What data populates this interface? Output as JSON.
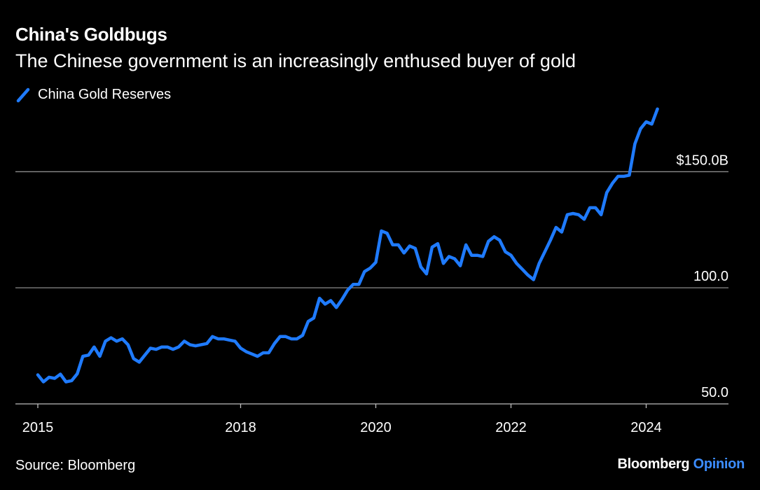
{
  "header": {
    "title": "China's Goldbugs",
    "subtitle": "The Chinese government is an increasingly enthused buyer of gold"
  },
  "legend": {
    "label": "China Gold Reserves",
    "color": "#1f7bff",
    "icon": "diagonal-line-icon"
  },
  "footer": {
    "source": "Source: Bloomberg",
    "brand_main": "Bloomberg",
    "brand_accent": "Opinion",
    "brand_accent_color": "#3c8dff"
  },
  "chart_data": {
    "type": "line",
    "title": "China's Goldbugs",
    "subtitle": "The Chinese government is an increasingly enthused buyer of gold",
    "xlabel": "",
    "ylabel": "",
    "xlim": [
      "2015-01",
      "2025-08"
    ],
    "ylim": [
      50,
      150
    ],
    "y_ticks": [
      {
        "value": 50,
        "label": "50.0"
      },
      {
        "value": 100,
        "label": "100.0"
      },
      {
        "value": 150,
        "label": "$150.0B"
      }
    ],
    "x_ticks": [
      {
        "value": "2015-01",
        "label": "2015"
      },
      {
        "value": "2018-01",
        "label": "2018"
      },
      {
        "value": "2020-01",
        "label": "2020"
      },
      {
        "value": "2022-01",
        "label": "2022"
      },
      {
        "value": "2024-01",
        "label": "2024"
      }
    ],
    "grid": "horizontal",
    "legend_position": "top-left",
    "series": [
      {
        "name": "China Gold Reserves",
        "color": "#1f7bff",
        "points": [
          [
            "2015-01",
            62.5
          ],
          [
            "2015-02",
            59.5
          ],
          [
            "2015-03",
            61.5
          ],
          [
            "2015-04",
            61
          ],
          [
            "2015-05",
            62.8
          ],
          [
            "2015-06",
            59.5
          ],
          [
            "2015-07",
            60
          ],
          [
            "2015-08",
            63
          ],
          [
            "2015-09",
            70.5
          ],
          [
            "2015-10",
            71
          ],
          [
            "2015-11",
            74.5
          ],
          [
            "2015-12",
            70.5
          ],
          [
            "2016-01",
            77
          ],
          [
            "2016-02",
            78.5
          ],
          [
            "2016-03",
            77
          ],
          [
            "2016-04",
            78
          ],
          [
            "2016-05",
            75.5
          ],
          [
            "2016-06",
            69.5
          ],
          [
            "2016-07",
            68
          ],
          [
            "2016-08",
            71
          ],
          [
            "2016-09",
            74
          ],
          [
            "2016-10",
            73.5
          ],
          [
            "2016-11",
            74.5
          ],
          [
            "2016-12",
            74.5
          ],
          [
            "2017-01",
            73.5
          ],
          [
            "2017-02",
            74.5
          ],
          [
            "2017-03",
            77
          ],
          [
            "2017-04",
            75.5
          ],
          [
            "2017-05",
            75
          ],
          [
            "2017-06",
            75.5
          ],
          [
            "2017-07",
            76
          ],
          [
            "2017-08",
            79
          ],
          [
            "2017-09",
            78
          ],
          [
            "2017-10",
            78
          ],
          [
            "2017-11",
            77.5
          ],
          [
            "2017-12",
            77
          ],
          [
            "2018-01",
            74
          ],
          [
            "2018-02",
            72.5
          ],
          [
            "2018-03",
            71.5
          ],
          [
            "2018-04",
            70.5
          ],
          [
            "2018-05",
            72
          ],
          [
            "2018-06",
            72
          ],
          [
            "2018-07",
            76
          ],
          [
            "2018-08",
            79
          ],
          [
            "2018-09",
            79
          ],
          [
            "2018-10",
            78
          ],
          [
            "2018-11",
            78
          ],
          [
            "2018-12",
            79.5
          ],
          [
            "2019-01",
            85.5
          ],
          [
            "2019-02",
            87
          ],
          [
            "2019-03",
            95.5
          ],
          [
            "2019-04",
            93
          ],
          [
            "2019-05",
            94.5
          ],
          [
            "2019-06",
            91.5
          ],
          [
            "2019-07",
            95
          ],
          [
            "2019-08",
            99
          ],
          [
            "2019-09",
            101.5
          ],
          [
            "2019-10",
            101.5
          ],
          [
            "2019-11",
            107
          ],
          [
            "2019-12",
            108.5
          ],
          [
            "2020-01",
            111
          ],
          [
            "2020-02",
            124.5
          ],
          [
            "2020-03",
            123.5
          ],
          [
            "2020-04",
            118.5
          ],
          [
            "2020-05",
            118.5
          ],
          [
            "2020-06",
            115
          ],
          [
            "2020-07",
            118
          ],
          [
            "2020-08",
            117
          ],
          [
            "2020-09",
            109
          ],
          [
            "2020-10",
            106
          ],
          [
            "2020-11",
            117.5
          ],
          [
            "2020-12",
            119
          ],
          [
            "2021-01",
            110.5
          ],
          [
            "2021-02",
            113.5
          ],
          [
            "2021-03",
            112.5
          ],
          [
            "2021-04",
            109.5
          ],
          [
            "2021-05",
            118.5
          ],
          [
            "2021-06",
            114
          ],
          [
            "2021-07",
            114
          ],
          [
            "2021-08",
            113.5
          ],
          [
            "2021-09",
            120
          ],
          [
            "2021-10",
            122
          ],
          [
            "2021-11",
            120.5
          ],
          [
            "2021-12",
            115.5
          ],
          [
            "2022-01",
            114
          ],
          [
            "2022-02",
            110.5
          ],
          [
            "2022-03",
            108
          ],
          [
            "2022-04",
            105.5
          ],
          [
            "2022-05",
            103.5
          ],
          [
            "2022-06",
            110.5
          ],
          [
            "2022-07",
            115.5
          ],
          [
            "2022-08",
            120.5
          ],
          [
            "2022-09",
            126
          ],
          [
            "2022-10",
            124
          ],
          [
            "2022-11",
            131.5
          ],
          [
            "2022-12",
            132
          ],
          [
            "2023-01",
            131.5
          ],
          [
            "2023-02",
            129.5
          ],
          [
            "2023-03",
            134.5
          ],
          [
            "2023-04",
            134.5
          ],
          [
            "2023-05",
            131.5
          ],
          [
            "2023-06",
            141
          ],
          [
            "2023-07",
            145
          ],
          [
            "2023-08",
            148
          ],
          [
            "2023-09",
            148
          ],
          [
            "2023-10",
            148.5
          ],
          [
            "2023-11",
            162
          ],
          [
            "2023-12",
            168.5
          ],
          [
            "2024-01",
            171.5
          ],
          [
            "2024-02",
            170.5
          ],
          [
            "2024-03",
            177
          ]
        ]
      }
    ]
  }
}
